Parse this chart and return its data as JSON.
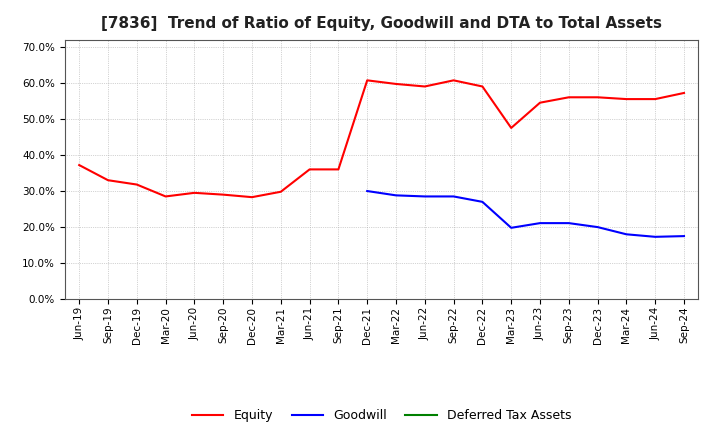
{
  "title": "[7836]  Trend of Ratio of Equity, Goodwill and DTA to Total Assets",
  "x_labels": [
    "Jun-19",
    "Sep-19",
    "Dec-19",
    "Mar-20",
    "Jun-20",
    "Sep-20",
    "Dec-20",
    "Mar-21",
    "Jun-21",
    "Sep-21",
    "Dec-21",
    "Mar-22",
    "Jun-22",
    "Sep-22",
    "Dec-22",
    "Mar-23",
    "Jun-23",
    "Sep-23",
    "Dec-23",
    "Mar-24",
    "Jun-24",
    "Sep-24"
  ],
  "equity": [
    0.372,
    0.33,
    0.318,
    0.285,
    0.295,
    0.29,
    0.283,
    0.298,
    0.36,
    0.36,
    0.607,
    0.597,
    0.59,
    0.607,
    0.59,
    0.475,
    0.545,
    0.56,
    0.56,
    0.555,
    0.555,
    0.572
  ],
  "goodwill": [
    null,
    null,
    null,
    null,
    null,
    null,
    null,
    null,
    null,
    null,
    0.3,
    0.288,
    0.285,
    0.285,
    0.27,
    0.198,
    0.211,
    0.211,
    0.2,
    0.18,
    0.173,
    0.175
  ],
  "dta": [
    null,
    null,
    null,
    null,
    null,
    null,
    null,
    null,
    null,
    null,
    null,
    null,
    null,
    null,
    null,
    null,
    null,
    null,
    null,
    null,
    null,
    null
  ],
  "equity_color": "#FF0000",
  "goodwill_color": "#0000FF",
  "dta_color": "#008000",
  "ylim": [
    0.0,
    0.72
  ],
  "yticks": [
    0.0,
    0.1,
    0.2,
    0.3,
    0.4,
    0.5,
    0.6,
    0.7
  ],
  "background_color": "#FFFFFF",
  "plot_bg_color": "#FFFFFF",
  "grid_color": "#AAAAAA",
  "title_fontsize": 11,
  "tick_fontsize": 7.5,
  "legend_fontsize": 9
}
